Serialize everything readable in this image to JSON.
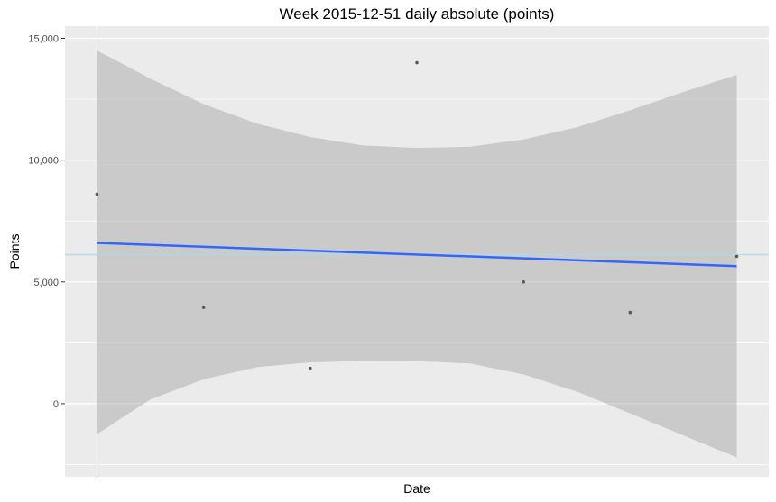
{
  "chart_data": {
    "type": "scatter",
    "title": "Week 2015-12-51 daily absolute (points)",
    "xlabel": "Date",
    "ylabel": "Points",
    "yticks": [
      {
        "value": 0,
        "label": "0"
      },
      {
        "value": 5000,
        "label": "5,000"
      },
      {
        "value": 10000,
        "label": "10,000"
      },
      {
        "value": 15000,
        "label": "15,000"
      }
    ],
    "ylim": [
      -3000,
      15500
    ],
    "xlim": [
      0.7,
      7.3
    ],
    "grid": true,
    "points": [
      {
        "x": 1,
        "y": 8600
      },
      {
        "x": 2,
        "y": 3950
      },
      {
        "x": 3,
        "y": 1450
      },
      {
        "x": 4,
        "y": 14000
      },
      {
        "x": 5,
        "y": 5000
      },
      {
        "x": 6,
        "y": 3750
      },
      {
        "x": 7,
        "y": 6050
      }
    ],
    "mean_line": {
      "y": 6120,
      "color": "#add8e6"
    },
    "trend_line": {
      "x": [
        1,
        7
      ],
      "y": [
        6600,
        5650
      ],
      "color": "#3366ff"
    },
    "confidence_band": {
      "x": [
        1,
        1.5,
        2,
        2.5,
        3,
        3.5,
        4,
        4.5,
        5,
        5.5,
        6,
        6.5,
        7
      ],
      "upper": [
        14500,
        13350,
        12300,
        11500,
        10950,
        10600,
        10500,
        10550,
        10850,
        11350,
        12050,
        12800,
        13500
      ],
      "lower": [
        -1250,
        170,
        1000,
        1500,
        1700,
        1760,
        1750,
        1650,
        1200,
        500,
        -400,
        -1300,
        -2200
      ],
      "color": "#999999"
    },
    "point_color": "#595959",
    "panel_background": "#ebebeb",
    "grid_color": "#ffffff"
  }
}
